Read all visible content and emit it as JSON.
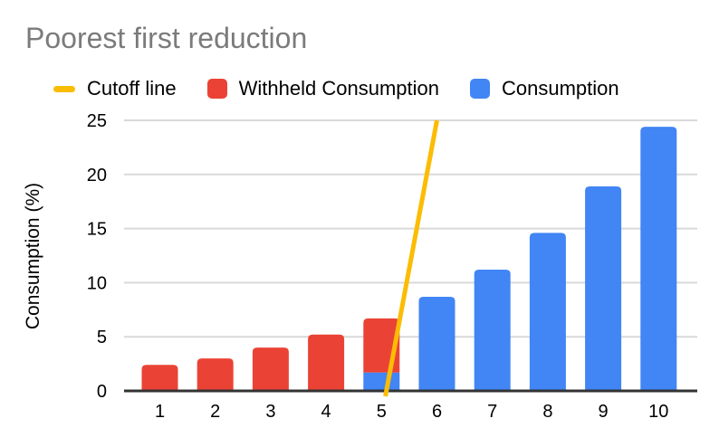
{
  "title": "Poorest first reduction",
  "legend": {
    "items": [
      {
        "label": "Cutoff line",
        "swatch": "line-dash",
        "color": "#FBBC04"
      },
      {
        "label": "Withheld Consumption",
        "swatch": "square",
        "color": "#EA4335"
      },
      {
        "label": "Consumption",
        "swatch": "square",
        "color": "#4285F4"
      }
    ]
  },
  "chart_data": {
    "type": "bar",
    "stacked": true,
    "title": "Poorest first reduction",
    "xlabel": "",
    "ylabel": "Consumption (%)",
    "categories": [
      "1",
      "2",
      "3",
      "4",
      "5",
      "6",
      "7",
      "8",
      "9",
      "10"
    ],
    "series": [
      {
        "name": "Consumption",
        "color": "#4285F4",
        "values": [
          0,
          0,
          0,
          0,
          1.7,
          8.7,
          11.2,
          14.6,
          18.9,
          24.4
        ]
      },
      {
        "name": "Withheld Consumption",
        "color": "#EA4335",
        "values": [
          2.4,
          3.0,
          4.0,
          5.2,
          5.0,
          0,
          0,
          0,
          0,
          0
        ]
      }
    ],
    "cutoff_line": {
      "name": "Cutoff line",
      "color": "#FBBC04",
      "points": [
        {
          "x": 5.07,
          "y": -0.5
        },
        {
          "x": 6.0,
          "y": 25
        }
      ]
    },
    "ylim": [
      0,
      25
    ],
    "y_ticks": [
      0,
      5,
      10,
      15,
      20,
      25
    ],
    "grid": true,
    "legend_position": "top",
    "colors": {
      "grid": "#d9d9d9",
      "axis": "#333333",
      "title_text": "#7b7b7b",
      "tick_text": "#000000",
      "background": "#ffffff"
    }
  }
}
